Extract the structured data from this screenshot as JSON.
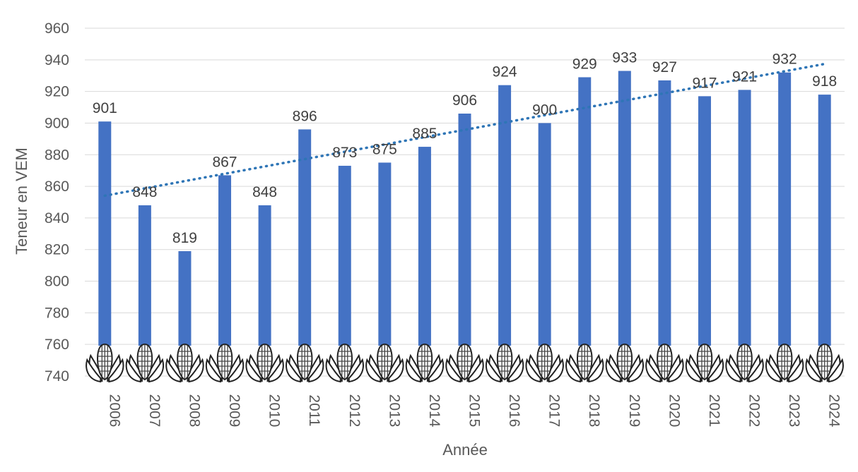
{
  "chart_data": {
    "type": "bar",
    "title": "",
    "xlabel": "Année",
    "ylabel": "Teneur en VEM",
    "categories": [
      "2006",
      "2007",
      "2008",
      "2009",
      "2010",
      "2011",
      "2012",
      "2013",
      "2014",
      "2015",
      "2016",
      "2017",
      "2018",
      "2019",
      "2020",
      "2021",
      "2022",
      "2023",
      "2024"
    ],
    "series": [
      {
        "name": "Teneur en VEM",
        "values": [
          901,
          848,
          819,
          867,
          848,
          896,
          873,
          875,
          885,
          906,
          924,
          900,
          929,
          933,
          927,
          917,
          921,
          932,
          918
        ],
        "color": "#4472c4"
      }
    ],
    "trendline": {
      "type": "linear",
      "style": "dotted",
      "color": "#2e75b6"
    },
    "ylim": [
      740,
      960
    ],
    "yticks": [
      740,
      760,
      780,
      800,
      820,
      840,
      860,
      880,
      900,
      920,
      940,
      960
    ],
    "grid": true,
    "legend": "none",
    "data_labels": true,
    "bar_base_icon": "corn-cob-icon"
  }
}
